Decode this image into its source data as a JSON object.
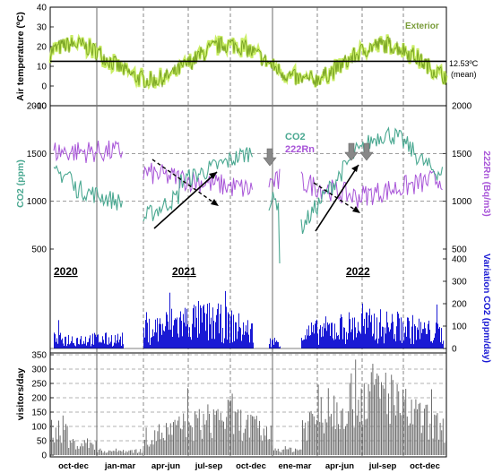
{
  "chart_data": [
    {
      "type": "line",
      "panel": "temperature",
      "ylabel": "Air temperature (ºC)",
      "ylim": [
        -10,
        40
      ],
      "yticks": [
        -10,
        0,
        10,
        20,
        30,
        40
      ],
      "series": [
        {
          "name": "Exterior",
          "color": "#88bb22"
        }
      ],
      "reference_line": {
        "value": 12.53,
        "label": "12.53ºC",
        "label2": "(mean)"
      },
      "grid": "dashed vertical"
    },
    {
      "type": "line",
      "panel": "co2-radon",
      "ylabel_left": "CO2 (ppm)",
      "ylabel_right": "222Rn (Bq/m3)",
      "ylim": [
        500,
        2000
      ],
      "yticks": [
        500,
        1000,
        1500,
        2000
      ],
      "legend_position": "top-center",
      "series": [
        {
          "name": "CO2",
          "color": "#4aa891"
        },
        {
          "name": "222Rn",
          "color": "#a855d8"
        }
      ]
    },
    {
      "type": "bar",
      "panel": "co2-variation",
      "ylabel": "Variation CO2 (ppm/day)",
      "ylim": [
        0,
        400
      ],
      "yticks": [
        0,
        100,
        200,
        300,
        400
      ],
      "color": "#1a1ad4",
      "year_labels": [
        "2020",
        "2021",
        "2022"
      ]
    },
    {
      "type": "bar",
      "panel": "visitors",
      "ylabel": "visitors/day",
      "ylim": [
        0,
        350
      ],
      "yticks": [
        0,
        50,
        100,
        150,
        200,
        250,
        300,
        350
      ],
      "color": "#6e6e6e",
      "x_tick_labels": [
        "oct-dec",
        "jan-mar",
        "apr-jun",
        "jul-sep",
        "oct-dec",
        "ene-mar",
        "apr-jun",
        "jul-sep",
        "oct-dec"
      ]
    }
  ],
  "labels": {
    "temp_ylabel": "Air temperature (ºC)",
    "exterior": "Exterior",
    "mean_value": "12.53ºC",
    "mean_text": "(mean)",
    "co2_ylabel": "CO2 (ppm)",
    "rn_ylabel": "222Rn (Bq/m3)",
    "legend_co2": "CO2",
    "legend_rn": "222Rn",
    "var_ylabel": "Variation CO2 (ppm/day)",
    "vis_ylabel": "visitors/day",
    "year_2020": "2020",
    "year_2021": "2021",
    "year_2022": "2022"
  }
}
